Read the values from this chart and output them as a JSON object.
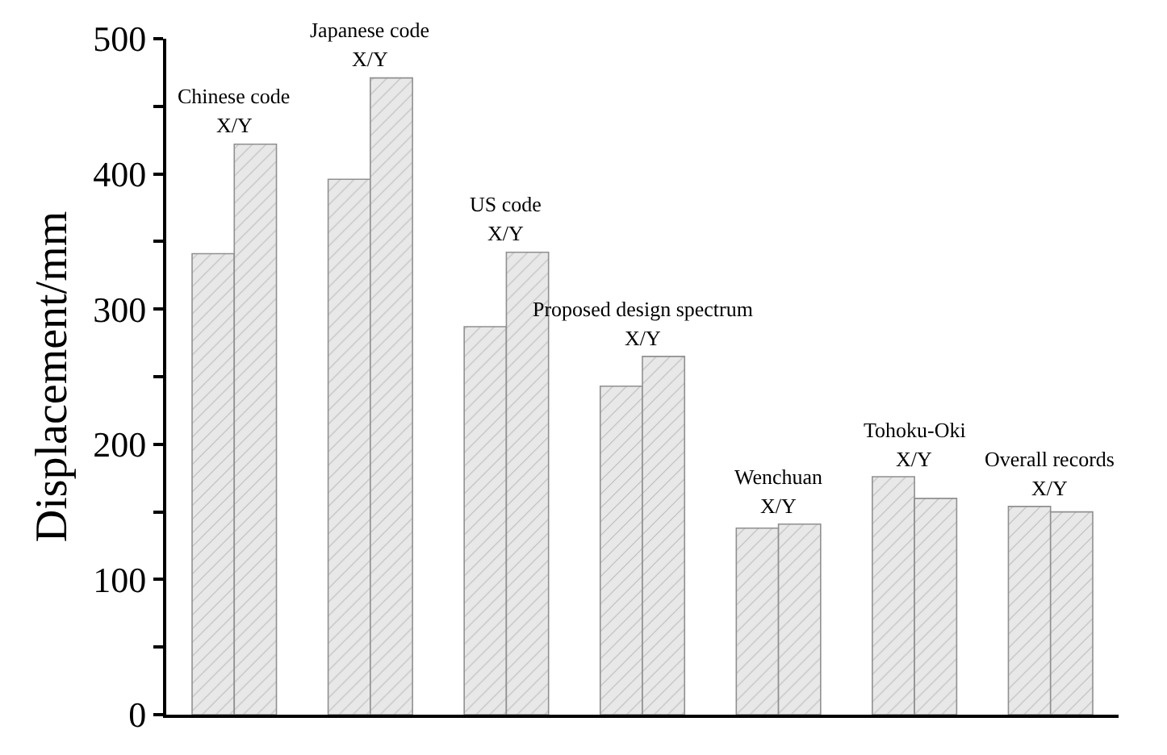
{
  "chart_data": {
    "type": "bar",
    "ylabel": "Displacement/mm",
    "categories": [
      "Chinese code",
      "Japanese code",
      "US code",
      "Proposed design spectrum",
      "Wenchuan",
      "Tohoku-Oki",
      "Overall records"
    ],
    "series": [
      {
        "color": "#909090",
        "values": [
          341,
          396,
          287,
          243,
          138,
          176,
          154
        ]
      },
      {
        "color": "#909090",
        "values": [
          422,
          471,
          342,
          265,
          141,
          160,
          150
        ]
      }
    ],
    "annotations": [
      {
        "text": "X/Y",
        "x": "Chinese code",
        "y": 422
      },
      {
        "text": "X/Y",
        "x": "Japanese code",
        "y": 471
      },
      {
        "text": "X/Y",
        "x": "US code",
        "y": 342
      },
      {
        "text": "X/Y",
        "x": "Proposed design spectrum",
        "y": 265
      },
      {
        "text": "X/Y",
        "x": "Wenchuan",
        "y": 141
      },
      {
        "text": "X/Y",
        "x": "Tohoku-Oki",
        "y": 176
      },
      {
        "text": "X/Y",
        "x": "Overall records",
        "y": 154
      }
    ],
    "ylim": [
      0,
      500
    ],
    "yticks": [
      0,
      {
        "value": 50,
        "label": null
      },
      100,
      {
        "value": 150,
        "label": null
      },
      200,
      {
        "value": 250,
        "label": null
      },
      300,
      {
        "value": 350,
        "label": null
      },
      400,
      {
        "value": 450,
        "label": null
      },
      500
    ],
    "tick_labels": "y",
    "legend": false
  }
}
